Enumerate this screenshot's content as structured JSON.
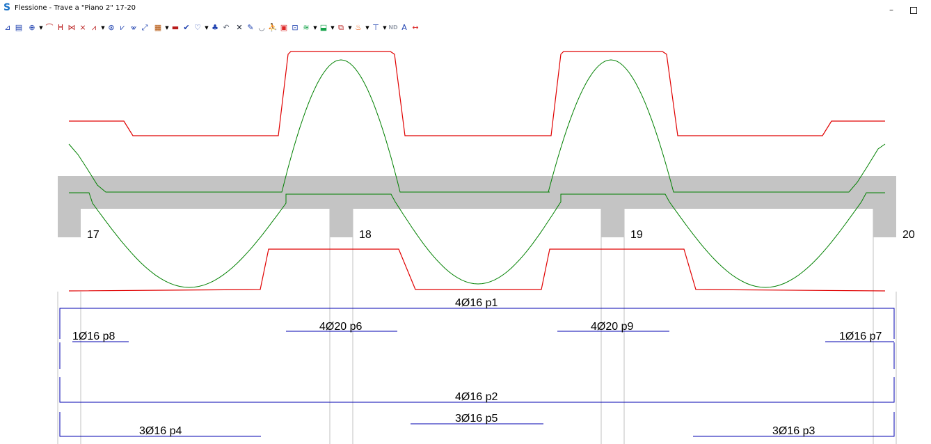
{
  "window": {
    "title": "Flessione - Trave a \"Piano 2\" 17-20",
    "app_icon": "S",
    "minimize_glyph": "–"
  },
  "toolbar": {
    "buttons": [
      {
        "icon": "pin-icon",
        "glyph": "⊿",
        "color": "#1e40af"
      },
      {
        "icon": "panel-icon",
        "glyph": "▤",
        "color": "#1e40af"
      },
      {
        "icon": "zoom-icon",
        "glyph": "⊕",
        "color": "#1e40af",
        "dropdown": true
      },
      {
        "icon": "curve-icon",
        "glyph": "⌒",
        "color": "#b91c1c"
      },
      {
        "icon": "curve-stirrup-icon",
        "glyph": "ᕼ",
        "color": "#b91c1c"
      },
      {
        "icon": "crossed-curve-icon",
        "glyph": "⋈",
        "color": "#b91c1c"
      },
      {
        "icon": "crossed-curve-2-icon",
        "glyph": "⨯",
        "color": "#b91c1c"
      },
      {
        "icon": "diagram-icon",
        "glyph": "⩘",
        "color": "#b91c1c",
        "dropdown": true
      },
      {
        "icon": "diagram-zoom-icon",
        "glyph": "⊛",
        "color": "#1e40af"
      },
      {
        "icon": "diagram-a-icon",
        "glyph": "⩗",
        "color": "#1e40af"
      },
      {
        "icon": "diagram-b-icon",
        "glyph": "⩖",
        "color": "#1e40af"
      },
      {
        "icon": "resize-icon",
        "glyph": "⤢",
        "color": "#1e40af"
      },
      {
        "icon": "report-icon",
        "glyph": "▦",
        "color": "#b45309",
        "dropdown": true
      },
      {
        "icon": "rebar-icon",
        "glyph": "▬",
        "color": "#b91c1c"
      },
      {
        "icon": "check-icon",
        "glyph": "✔",
        "color": "#1e40af"
      },
      {
        "icon": "shield-icon",
        "glyph": "♡",
        "color": "#1e40af",
        "dropdown": true
      },
      {
        "icon": "tree-icon",
        "glyph": "♣",
        "color": "#1e40af"
      },
      {
        "icon": "undo-icon",
        "glyph": "↶",
        "color": "#6b7280"
      },
      {
        "icon": "close-icon",
        "glyph": "✕",
        "color": "#111827"
      },
      {
        "icon": "pen-icon",
        "glyph": "✎",
        "color": "#1e40af"
      },
      {
        "icon": "arc-icon",
        "glyph": "◡",
        "color": "#6b7280"
      },
      {
        "icon": "figure-icon",
        "glyph": "⛹",
        "color": "#b91c1c"
      },
      {
        "icon": "red-box-icon",
        "glyph": "▣",
        "color": "#dc2626"
      },
      {
        "icon": "layers-icon",
        "glyph": "⊡",
        "color": "#1e40af"
      },
      {
        "icon": "rainbow-icon",
        "glyph": "≋",
        "color": "#16a34a",
        "dropdown": true
      },
      {
        "icon": "export-icon",
        "glyph": "⬓",
        "color": "#16a34a",
        "dropdown": true
      },
      {
        "icon": "chart-icon",
        "glyph": "⧉",
        "color": "#b91c1c",
        "dropdown": true
      },
      {
        "icon": "fire-icon",
        "glyph": "♨",
        "color": "#ea580c",
        "dropdown": true
      },
      {
        "icon": "beam-section-icon",
        "glyph": "⊤",
        "color": "#1e40af",
        "dropdown": true
      },
      {
        "icon": "nd-icon",
        "glyph": "ND",
        "color": "#9ca3af"
      },
      {
        "icon": "text-icon",
        "glyph": "A",
        "color": "#1e40af"
      },
      {
        "icon": "span-icon",
        "glyph": "↔",
        "color": "#dc2626"
      }
    ]
  },
  "drawing": {
    "colors": {
      "beam": "#c4c4c4",
      "envelope_red": "#e00000",
      "moment_green": "#008000",
      "rebar_blue": "#0000b0",
      "gridline": "#c0c0c0"
    },
    "supports": [
      "17",
      "18",
      "19",
      "20"
    ],
    "bars": [
      {
        "id": "p1",
        "label": "4Ø16 p1"
      },
      {
        "id": "p6",
        "label": "4Ø20 p6"
      },
      {
        "id": "p9",
        "label": "4Ø20 p9"
      },
      {
        "id": "p8",
        "label": "1Ø16 p8"
      },
      {
        "id": "p7",
        "label": "1Ø16 p7"
      },
      {
        "id": "p2",
        "label": "4Ø16 p2"
      },
      {
        "id": "p5",
        "label": "3Ø16 p5"
      },
      {
        "id": "p4",
        "label": "3Ø16 p4"
      },
      {
        "id": "p3",
        "label": "3Ø16 p3"
      }
    ]
  }
}
